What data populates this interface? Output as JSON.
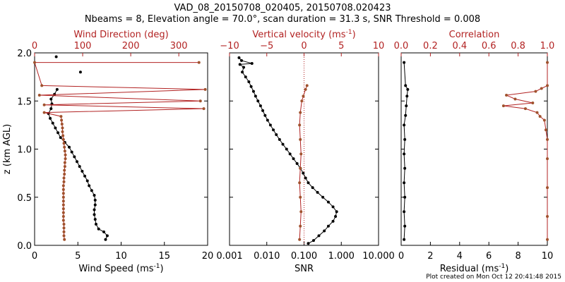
{
  "title_line1": "VAD_08_20150708_020405, 20150708.020423",
  "title_line2": "Nbeams = 8, Elevation angle = 70.0°, scan duration = 31.3 s, SNR Threshold = 0.008",
  "footer": "Plot created on Mon Oct 12 20:41:48 2015",
  "colors": {
    "black": "#000000",
    "red": "#b22222",
    "brown": "#a0522d"
  },
  "chart_data": [
    {
      "type": "line",
      "ylabel": "z (km AGL)",
      "ylim": [
        0,
        2.0
      ],
      "yticks": [
        0.0,
        0.5,
        1.0,
        1.5,
        2.0
      ],
      "ytick_labels": [
        "0.0",
        "0.5",
        "1.0",
        "1.5",
        "2.0"
      ],
      "bottom_axis": {
        "label": "Wind Speed (ms",
        "label_sup": "-1",
        "label_end": ")",
        "lim": [
          0,
          20
        ],
        "ticks": [
          0,
          5,
          10,
          15,
          20
        ],
        "tick_labels": [
          "0",
          "5",
          "10",
          "15",
          "20"
        ]
      },
      "top_axis": {
        "label": "Wind Direction (deg)",
        "lim": [
          0,
          360
        ],
        "ticks": [
          0,
          100,
          200,
          300
        ],
        "tick_labels": [
          "0",
          "100",
          "200",
          "300"
        ]
      },
      "series": [
        {
          "axis": "bottom",
          "color": "#000000",
          "points": [
            [
              8.2,
              0.06
            ],
            [
              8.4,
              0.1
            ],
            [
              8.0,
              0.14
            ],
            [
              7.4,
              0.17
            ],
            [
              7.1,
              0.22
            ],
            [
              7.0,
              0.27
            ],
            [
              6.9,
              0.32
            ],
            [
              6.9,
              0.37
            ],
            [
              7.0,
              0.42
            ],
            [
              7.0,
              0.47
            ],
            [
              6.9,
              0.52
            ],
            [
              6.6,
              0.57
            ],
            [
              6.3,
              0.62
            ],
            [
              6.1,
              0.67
            ],
            [
              5.8,
              0.72
            ],
            [
              5.5,
              0.77
            ],
            [
              5.2,
              0.82
            ],
            [
              4.9,
              0.87
            ],
            [
              4.6,
              0.92
            ],
            [
              4.3,
              0.97
            ],
            [
              4.0,
              1.02
            ],
            [
              3.5,
              1.07
            ],
            [
              3.0,
              1.12
            ],
            [
              2.7,
              1.17
            ],
            [
              2.4,
              1.22
            ],
            [
              2.1,
              1.27
            ],
            [
              1.8,
              1.32
            ],
            [
              1.6,
              1.37
            ],
            [
              1.9,
              1.42
            ],
            [
              2.0,
              1.47
            ],
            [
              1.9,
              1.52
            ],
            [
              2.3,
              1.57
            ],
            [
              2.6,
              1.62
            ]
          ]
        },
        {
          "axis": "bottom",
          "color": "#000000",
          "points": [
            [
              2.5,
              1.96
            ],
            [
              5.3,
              1.8
            ]
          ]
        },
        {
          "axis": "top",
          "color": "#b22222",
          "points": [
            [
              62,
              0.06
            ],
            [
              61,
              0.1
            ],
            [
              61,
              0.14
            ],
            [
              61,
              0.18
            ],
            [
              61,
              0.22
            ],
            [
              60,
              0.26
            ],
            [
              60,
              0.3
            ],
            [
              60,
              0.34
            ],
            [
              60,
              0.38
            ],
            [
              60,
              0.42
            ],
            [
              60,
              0.46
            ],
            [
              60,
              0.5
            ],
            [
              60,
              0.54
            ],
            [
              60,
              0.58
            ],
            [
              60,
              0.62
            ],
            [
              61,
              0.66
            ],
            [
              61,
              0.7
            ],
            [
              62,
              0.74
            ],
            [
              62,
              0.78
            ],
            [
              63,
              0.82
            ],
            [
              63,
              0.86
            ],
            [
              64,
              0.9
            ],
            [
              64,
              0.94
            ],
            [
              63,
              0.98
            ],
            [
              62,
              1.02
            ],
            [
              61,
              1.06
            ],
            [
              60,
              1.1
            ],
            [
              59,
              1.14
            ],
            [
              58,
              1.18
            ],
            [
              58,
              1.22
            ],
            [
              57,
              1.26
            ],
            [
              56,
              1.3
            ],
            [
              55,
              1.34
            ],
            [
              20,
              1.38
            ],
            [
              352,
              1.42
            ],
            [
              20,
              1.46
            ],
            [
              345,
              1.5
            ],
            [
              10,
              1.56
            ],
            [
              355,
              1.62
            ],
            [
              15,
              1.66
            ],
            [
              0,
              1.9
            ],
            [
              342,
              1.9
            ]
          ]
        }
      ]
    },
    {
      "type": "line",
      "bottom_axis": {
        "label": "SNR",
        "scale": "log",
        "lim": [
          0.001,
          10
        ],
        "ticks": [
          0.001,
          0.01,
          0.1,
          1,
          10
        ],
        "tick_labels": [
          "0.001",
          "0.010",
          "0.100",
          "1.000",
          "10.000"
        ]
      },
      "top_axis": {
        "label": "Vertical velocity (ms",
        "label_sup": "-1",
        "label_end": ")",
        "lim": [
          -10,
          10
        ],
        "ticks": [
          -10,
          -5,
          0,
          5,
          10
        ],
        "tick_labels": [
          "−10",
          "−5",
          "0",
          "5",
          "10"
        ]
      },
      "series": [
        {
          "axis": "bottom",
          "color": "#000000",
          "points": [
            [
              0.13,
              0.02
            ],
            [
              0.18,
              0.05
            ],
            [
              0.25,
              0.1
            ],
            [
              0.35,
              0.15
            ],
            [
              0.45,
              0.2
            ],
            [
              0.6,
              0.25
            ],
            [
              0.7,
              0.3
            ],
            [
              0.75,
              0.35
            ],
            [
              0.6,
              0.4
            ],
            [
              0.45,
              0.45
            ],
            [
              0.32,
              0.5
            ],
            [
              0.23,
              0.55
            ],
            [
              0.17,
              0.6
            ],
            [
              0.13,
              0.65
            ],
            [
              0.11,
              0.7
            ],
            [
              0.095,
              0.75
            ],
            [
              0.08,
              0.8
            ],
            [
              0.065,
              0.85
            ],
            [
              0.052,
              0.9
            ],
            [
              0.042,
              0.95
            ],
            [
              0.034,
              1.0
            ],
            [
              0.027,
              1.05
            ],
            [
              0.022,
              1.1
            ],
            [
              0.018,
              1.15
            ],
            [
              0.015,
              1.2
            ],
            [
              0.0125,
              1.25
            ],
            [
              0.0105,
              1.3
            ],
            [
              0.009,
              1.35
            ],
            [
              0.0078,
              1.4
            ],
            [
              0.0068,
              1.45
            ],
            [
              0.0058,
              1.5
            ],
            [
              0.005,
              1.55
            ],
            [
              0.0044,
              1.6
            ],
            [
              0.0038,
              1.65
            ],
            [
              0.0033,
              1.7
            ],
            [
              0.0027,
              1.75
            ],
            [
              0.0022,
              1.8
            ],
            [
              0.0024,
              1.85
            ],
            [
              0.0019,
              1.88
            ],
            [
              0.004,
              1.89
            ],
            [
              0.0021,
              1.92
            ],
            [
              0.0018,
              1.95
            ]
          ]
        },
        {
          "axis": "top",
          "color": "#b22222",
          "points": [
            [
              -0.6,
              0.06
            ],
            [
              -0.5,
              0.2
            ],
            [
              -0.4,
              0.35
            ],
            [
              -0.5,
              0.5
            ],
            [
              -0.6,
              0.65
            ],
            [
              -0.5,
              0.8
            ],
            [
              -0.4,
              0.95
            ],
            [
              -0.5,
              1.1
            ],
            [
              -0.6,
              1.25
            ],
            [
              -0.5,
              1.38
            ],
            [
              -0.3,
              1.5
            ],
            [
              -0.1,
              1.55
            ],
            [
              0.2,
              1.62
            ],
            [
              0.4,
              1.66
            ]
          ]
        }
      ],
      "reference_line_top": 0
    },
    {
      "type": "line",
      "bottom_axis": {
        "label": "Residual (ms",
        "label_sup": "-1",
        "label_end": ")",
        "lim": [
          0,
          10
        ],
        "ticks": [
          0,
          2,
          4,
          6,
          8,
          10
        ],
        "tick_labels": [
          "0",
          "2",
          "4",
          "6",
          "8",
          "10"
        ]
      },
      "top_axis": {
        "label": "Correlation",
        "lim": [
          0,
          1.0
        ],
        "ticks": [
          0.0,
          0.2,
          0.4,
          0.6,
          0.8,
          1.0
        ],
        "tick_labels": [
          "0.0",
          "0.2",
          "0.4",
          "0.6",
          "0.8",
          "1.0"
        ]
      },
      "series": [
        {
          "axis": "bottom",
          "color": "#000000",
          "points": [
            [
              0.2,
              0.06
            ],
            [
              0.25,
              0.2
            ],
            [
              0.2,
              0.35
            ],
            [
              0.25,
              0.5
            ],
            [
              0.2,
              0.65
            ],
            [
              0.25,
              0.8
            ],
            [
              0.2,
              0.95
            ],
            [
              0.25,
              1.1
            ],
            [
              0.2,
              1.25
            ],
            [
              0.3,
              1.35
            ],
            [
              0.35,
              1.45
            ],
            [
              0.4,
              1.55
            ],
            [
              0.45,
              1.62
            ],
            [
              0.3,
              1.66
            ],
            [
              0.2,
              1.9
            ]
          ]
        },
        {
          "axis": "top",
          "color": "#b22222",
          "points": [
            [
              1.0,
              0.06
            ],
            [
              1.0,
              0.3
            ],
            [
              1.0,
              0.6
            ],
            [
              1.0,
              0.9
            ],
            [
              1.0,
              1.1
            ],
            [
              0.99,
              1.2
            ],
            [
              0.98,
              1.3
            ],
            [
              0.95,
              1.34
            ],
            [
              0.93,
              1.38
            ],
            [
              0.85,
              1.42
            ],
            [
              0.7,
              1.45
            ],
            [
              0.9,
              1.48
            ],
            [
              0.78,
              1.52
            ],
            [
              0.72,
              1.56
            ],
            [
              0.92,
              1.6
            ],
            [
              0.96,
              1.63
            ],
            [
              1.0,
              1.66
            ],
            [
              1.0,
              1.9
            ]
          ]
        }
      ]
    }
  ]
}
